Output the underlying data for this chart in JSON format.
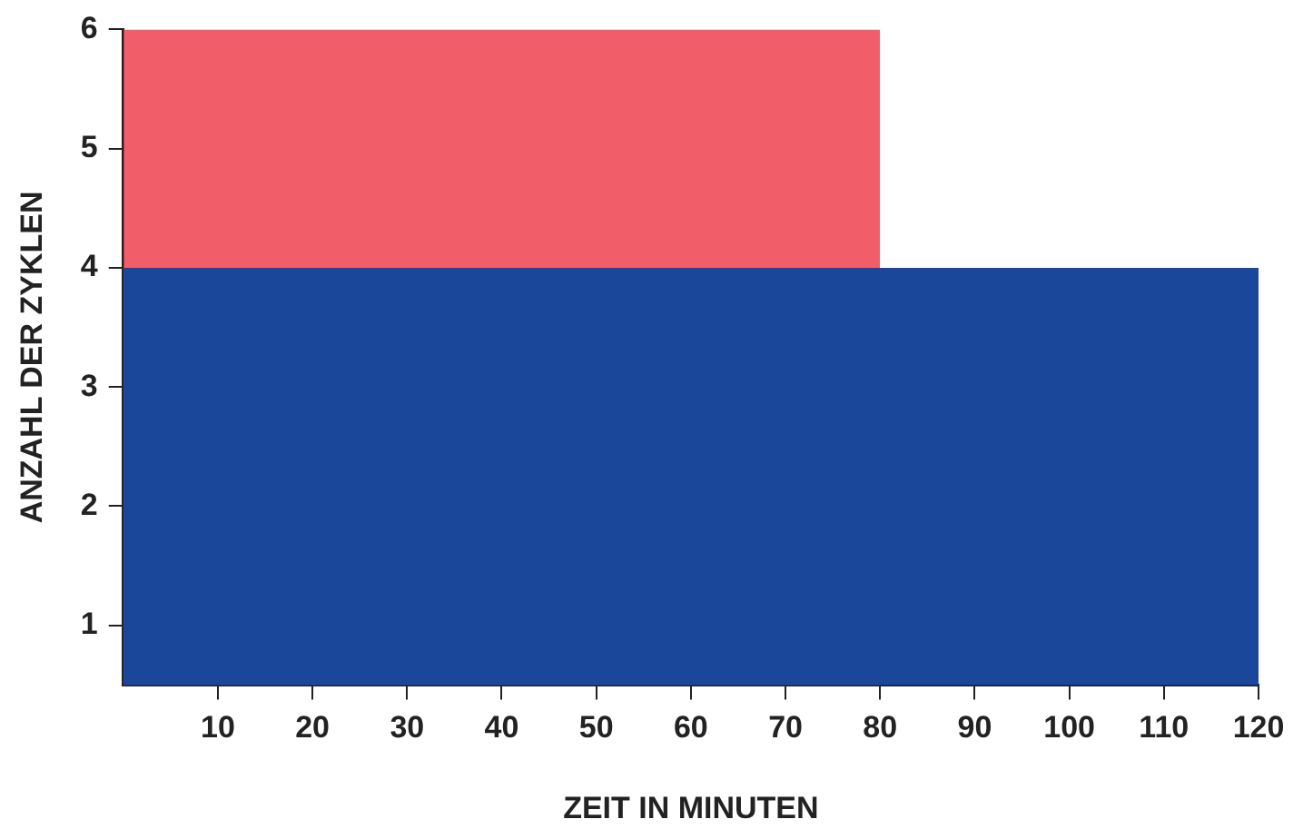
{
  "chart_data": {
    "type": "area",
    "xlabel": "ZEIT IN MINUTEN",
    "ylabel": "ANZAHL DER ZYKLEN",
    "xlim": [
      0,
      120
    ],
    "xticks": [
      10,
      20,
      30,
      40,
      50,
      60,
      70,
      80,
      90,
      100,
      110,
      120
    ],
    "ylim": [
      0.5,
      6
    ],
    "yticks": [
      1,
      2,
      3,
      4,
      5,
      6
    ],
    "grid": false,
    "legend": false,
    "marker": "none",
    "series": [
      {
        "x": [
          0,
          120
        ],
        "values": [
          4,
          4
        ],
        "color": "#1b479a"
      },
      {
        "x": [
          0,
          80
        ],
        "values": [
          6,
          6
        ],
        "color": "#ee2f40"
      }
    ]
  }
}
